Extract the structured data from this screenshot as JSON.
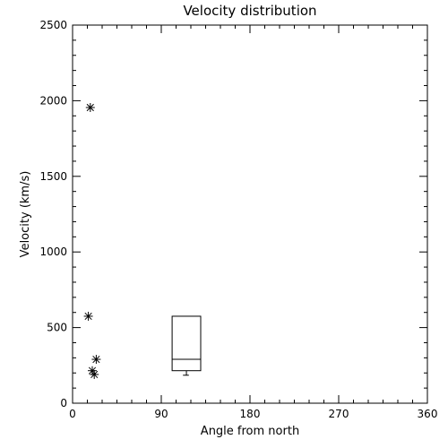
{
  "chart_data": {
    "type": "scatter",
    "title": "Velocity distribution",
    "xlabel": "Angle from north",
    "ylabel": "Velocity (km/s)",
    "xlim": [
      0,
      360
    ],
    "ylim": [
      0,
      2500
    ],
    "xticks": [
      "0",
      "90",
      "180",
      "270",
      "360"
    ],
    "yticks": [
      "0",
      "500",
      "1000",
      "1500",
      "2000",
      "2500"
    ],
    "grid": false,
    "series": [
      {
        "points": [
          {
            "x": 18,
            "y": 1955
          },
          {
            "x": 16,
            "y": 575
          },
          {
            "x": 24,
            "y": 290
          },
          {
            "x": 20,
            "y": 215
          },
          {
            "x": 22,
            "y": 190
          }
        ]
      }
    ],
    "boxplot": {
      "x": [
        101,
        130
      ],
      "min": 185,
      "q1": 215,
      "median": 290,
      "q3": 575,
      "whisker_x": [
        112,
        118
      ]
    }
  }
}
